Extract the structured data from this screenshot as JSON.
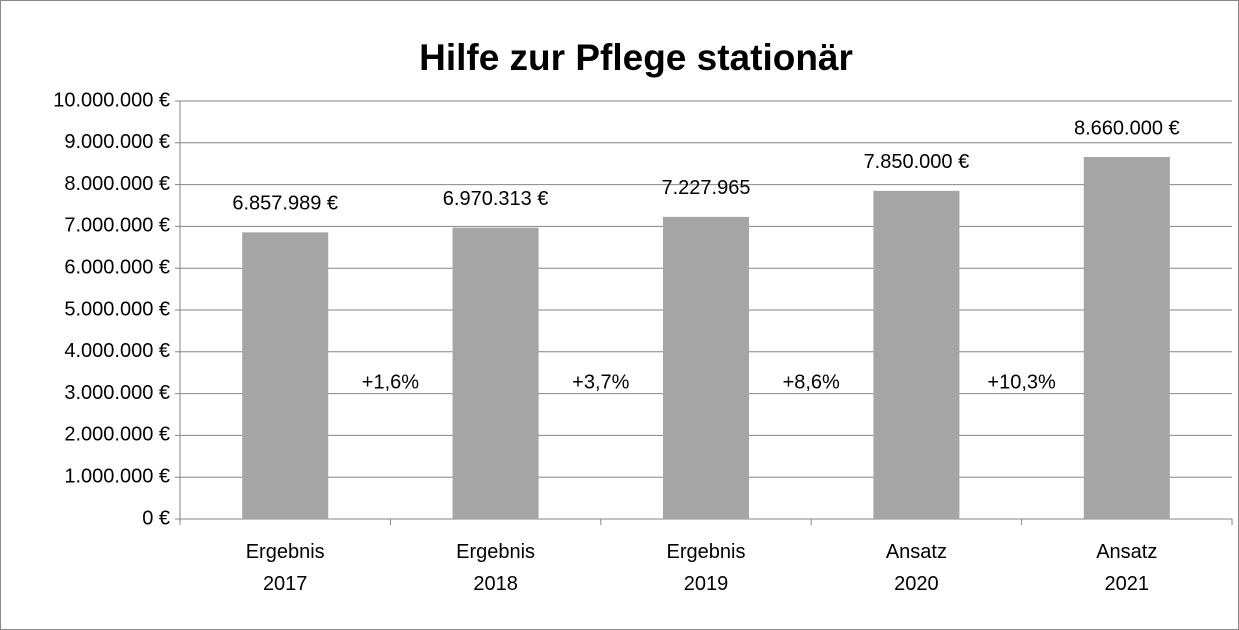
{
  "chart_data": {
    "type": "bar",
    "title": "Hilfe zur Pflege stationär",
    "categories": [
      [
        "Ergebnis",
        "2017"
      ],
      [
        "Ergebnis",
        "2018"
      ],
      [
        "Ergebnis",
        "2019"
      ],
      [
        "Ansatz",
        "2020"
      ],
      [
        "Ansatz",
        "2021"
      ]
    ],
    "values": [
      6857989,
      6970313,
      7227965,
      7850000,
      8660000
    ],
    "value_labels": [
      "6.857.989 €",
      "6.970.313 €",
      "7.227.965",
      "7.850.000 €",
      "8.660.000 €"
    ],
    "color": "#a5a5a5",
    "annotations": [
      "+1,6%",
      "+3,7%",
      "+8,6%",
      "+10,3%"
    ],
    "ylim": [
      0,
      10000000
    ],
    "yticks": [
      {
        "value": 0,
        "label": "0 €"
      },
      {
        "value": 1000000,
        "label": "1.000.000 €"
      },
      {
        "value": 2000000,
        "label": "2.000.000 €"
      },
      {
        "value": 3000000,
        "label": "3.000.000 €"
      },
      {
        "value": 4000000,
        "label": "4.000.000 €"
      },
      {
        "value": 5000000,
        "label": "5.000.000 €"
      },
      {
        "value": 6000000,
        "label": "6.000.000 €"
      },
      {
        "value": 7000000,
        "label": "7.000.000 €"
      },
      {
        "value": 8000000,
        "label": "8.000.000 €"
      },
      {
        "value": 9000000,
        "label": "9.000.000 €"
      },
      {
        "value": 10000000,
        "label": "10.000.000 €"
      }
    ],
    "grid": true
  }
}
